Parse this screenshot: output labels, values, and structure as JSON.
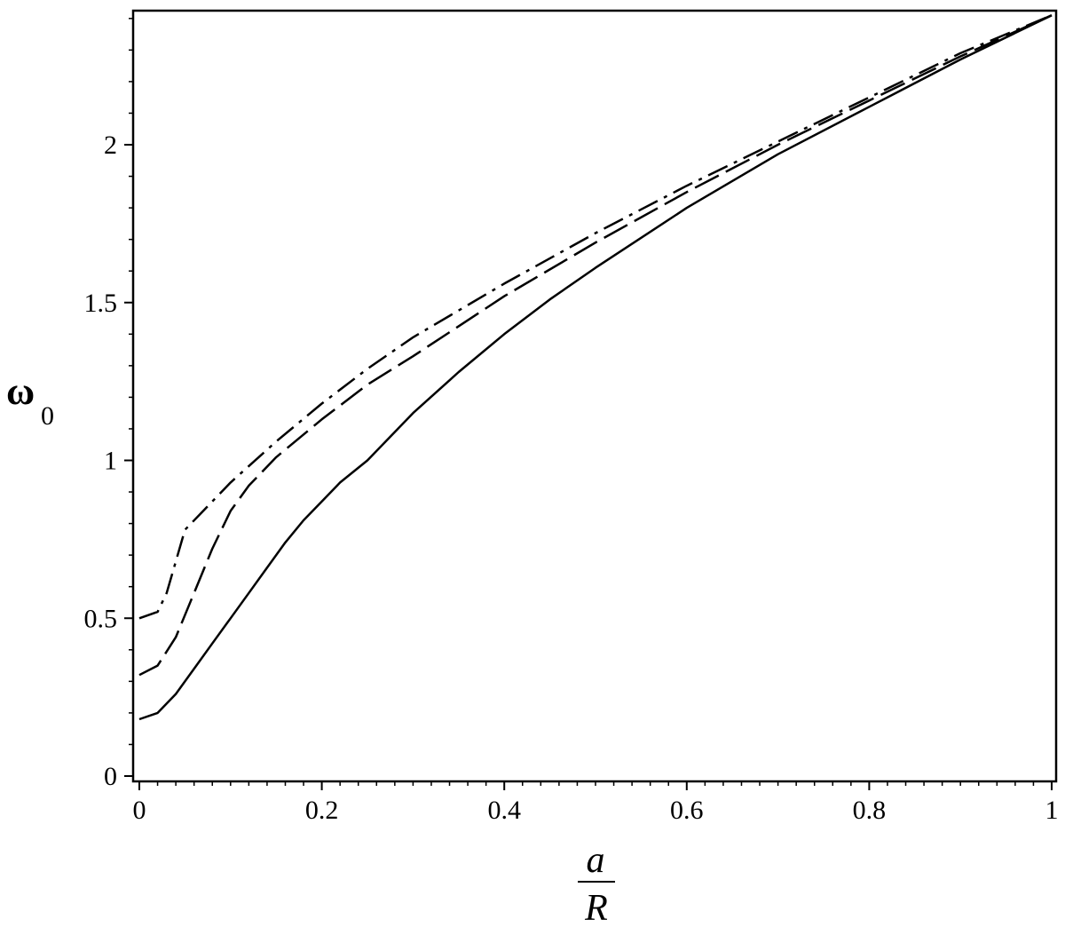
{
  "chart_data": {
    "type": "line",
    "title": "",
    "xlabel": {
      "numerator": "a",
      "denominator": "R"
    },
    "ylabel": {
      "symbol": "ω",
      "subscript": "0"
    },
    "xlim": [
      0,
      1
    ],
    "ylim": [
      0,
      2.42
    ],
    "grid": false,
    "legend": "none",
    "x_ticks": [
      0,
      0.2,
      0.4,
      0.6,
      0.8,
      1
    ],
    "x_tick_labels": [
      "0",
      "0.2",
      "0.4",
      "0.6",
      "0.8",
      "1"
    ],
    "y_ticks": [
      0,
      0.5,
      1,
      1.5,
      2
    ],
    "y_tick_labels": [
      "0",
      "0.5",
      "1",
      "1.5",
      "2"
    ],
    "y_minor_step": 0.1,
    "x_minor_step": 0.02,
    "series": [
      {
        "style": "solid",
        "color": "#000000",
        "x": [
          0,
          0.02,
          0.04,
          0.06,
          0.08,
          0.1,
          0.12,
          0.14,
          0.16,
          0.18,
          0.2,
          0.22,
          0.25,
          0.3,
          0.35,
          0.4,
          0.45,
          0.5,
          0.6,
          0.7,
          0.8,
          0.9,
          1.0
        ],
        "y": [
          0.18,
          0.2,
          0.26,
          0.34,
          0.42,
          0.5,
          0.58,
          0.66,
          0.74,
          0.81,
          0.87,
          0.93,
          1.0,
          1.15,
          1.28,
          1.4,
          1.51,
          1.61,
          1.8,
          1.97,
          2.12,
          2.27,
          2.41
        ]
      },
      {
        "style": "dashed",
        "color": "#000000",
        "x": [
          0,
          0.02,
          0.04,
          0.06,
          0.08,
          0.1,
          0.12,
          0.15,
          0.2,
          0.25,
          0.3,
          0.4,
          0.5,
          0.6,
          0.7,
          0.8,
          0.9,
          1.0
        ],
        "y": [
          0.32,
          0.35,
          0.44,
          0.58,
          0.72,
          0.84,
          0.92,
          1.01,
          1.13,
          1.24,
          1.33,
          1.52,
          1.69,
          1.85,
          2.0,
          2.14,
          2.28,
          2.41
        ]
      },
      {
        "style": "dash-dot",
        "color": "#000000",
        "x": [
          0,
          0.02,
          0.03,
          0.04,
          0.05,
          0.07,
          0.1,
          0.15,
          0.2,
          0.25,
          0.3,
          0.4,
          0.5,
          0.6,
          0.7,
          0.8,
          0.9,
          1.0
        ],
        "y": [
          0.5,
          0.52,
          0.58,
          0.68,
          0.78,
          0.84,
          0.93,
          1.06,
          1.18,
          1.29,
          1.39,
          1.56,
          1.72,
          1.87,
          2.01,
          2.15,
          2.29,
          2.41
        ]
      }
    ]
  }
}
